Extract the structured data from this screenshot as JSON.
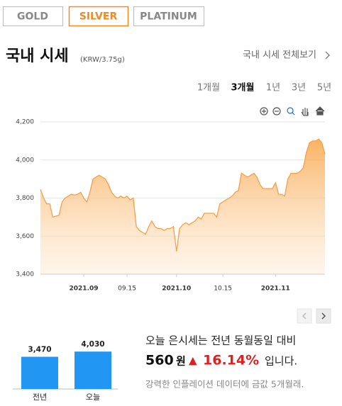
{
  "tabs": {
    "items": [
      "GOLD",
      "SILVER",
      "PLATINUM"
    ],
    "active": 1
  },
  "header": {
    "title": "국내 시세",
    "unit": "(KRW/3.75g)",
    "link": "국내 시세 전체보기"
  },
  "periods": {
    "items": [
      "1개월",
      "3개월",
      "1년",
      "3년",
      "5년"
    ],
    "active": 1
  },
  "chart_data": [
    {
      "type": "area",
      "color": "#f5a04a",
      "grid": true,
      "ylim": [
        3400,
        4200
      ],
      "yticks": [
        {
          "value": 3400,
          "label": "3,400"
        },
        {
          "value": 3600,
          "label": "3,600"
        },
        {
          "value": 3800,
          "label": "3,800"
        },
        {
          "value": 4000,
          "label": "4,000"
        },
        {
          "value": 4200,
          "label": "4,200"
        }
      ],
      "categories": [
        null,
        null,
        null,
        null,
        null,
        null,
        null,
        null,
        null,
        null,
        null,
        null,
        null,
        null,
        "2021.09",
        null,
        null,
        null,
        null,
        null,
        null,
        null,
        null,
        null,
        null,
        null,
        null,
        null,
        "09.15",
        null,
        null,
        null,
        null,
        null,
        null,
        null,
        null,
        null,
        null,
        null,
        null,
        null,
        null,
        null,
        "2021.10",
        null,
        null,
        null,
        null,
        null,
        null,
        null,
        null,
        null,
        null,
        null,
        null,
        null,
        null,
        "10.15",
        null,
        null,
        null,
        null,
        null,
        null,
        null,
        null,
        null,
        null,
        null,
        null,
        null,
        null,
        null,
        null,
        "2021.11",
        null,
        null,
        null,
        null,
        null,
        null,
        null,
        null,
        null,
        null,
        null,
        null,
        null,
        null,
        null,
        null
      ],
      "values": [
        3846,
        3800,
        3770,
        3770,
        3700,
        3705,
        3710,
        3780,
        3800,
        3810,
        3820,
        3815,
        3820,
        3830,
        3800,
        3780,
        3830,
        3900,
        3910,
        3920,
        3910,
        3900,
        3870,
        3830,
        3810,
        3800,
        3810,
        3800,
        3810,
        3790,
        3800,
        3650,
        3630,
        3620,
        3610,
        3650,
        3680,
        3650,
        3640,
        3640,
        3630,
        3640,
        3640,
        3650,
        3520,
        3640,
        3660,
        3670,
        3660,
        3670,
        3680,
        3700,
        3690,
        3720,
        3720,
        3720,
        3720,
        3700,
        3770,
        3780,
        3790,
        3800,
        3810,
        3830,
        3840,
        3930,
        3920,
        3910,
        3920,
        3930,
        3910,
        3870,
        3850,
        3850,
        3850,
        3850,
        3880,
        3820,
        3820,
        3810,
        3900,
        3930,
        3930,
        3930,
        3940,
        3960,
        4040,
        4090,
        4100,
        4100,
        4110,
        4090,
        4030
      ]
    },
    {
      "type": "bar",
      "color": "#2196f3",
      "categories": [
        "전년",
        "오늘"
      ],
      "values": [
        3470,
        4030
      ],
      "value_labels": [
        "3,470",
        "4,030"
      ]
    }
  ],
  "summary": {
    "line1": "오늘 은시세는 전년 동월동일 대비",
    "diff": 560,
    "unit": "원",
    "arrow": "▲",
    "pct": "16.14%",
    "suffix": "입니다.",
    "note": "강력한 인플레이션 데이터에 금값 5개월래."
  }
}
